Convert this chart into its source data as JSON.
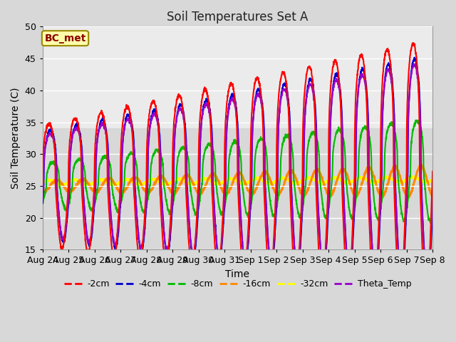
{
  "title": "Soil Temperatures Set A",
  "xlabel": "Time",
  "ylabel": "Soil Temperature (C)",
  "ylim": [
    15,
    50
  ],
  "figure_bg": "#d8d8d8",
  "plot_bg_top": "#e8e8e8",
  "plot_bg_bottom": "#d0d0d0",
  "annotation_text": "BC_met",
  "annotation_color": "#8b0000",
  "annotation_bg": "#ffffaa",
  "annotation_border": "#998800",
  "series_colors": {
    "-2cm": "#ff0000",
    "-4cm": "#0000cc",
    "-8cm": "#00bb00",
    "-16cm": "#ff8800",
    "-32cm": "#ffff00",
    "Theta_Temp": "#9900cc"
  },
  "tick_labels": [
    "Aug 24",
    "Aug 25",
    "Aug 26",
    "Aug 27",
    "Aug 28",
    "Aug 29",
    "Aug 30",
    "Aug 31",
    "Sep 1",
    "Sep 2",
    "Sep 3",
    "Sep 4",
    "Sep 5",
    "Sep 6",
    "Sep 7",
    "Sep 8"
  ],
  "yticks": [
    15,
    20,
    25,
    30,
    35,
    40,
    45,
    50
  ],
  "num_days": 15,
  "points_per_day": 144,
  "trough_base": 19.5,
  "mean_base": 25.0,
  "mean_trend_total": 2.5,
  "peak_amplitudes_start": [
    9.5,
    8.5,
    3.5,
    1.2,
    0.5,
    8.0
  ],
  "peak_amplitudes_end": [
    20.5,
    18.0,
    8.0,
    3.5,
    0.8,
    17.0
  ],
  "phase_offsets": [
    0.0,
    0.05,
    0.15,
    0.3,
    0.5,
    0.04
  ],
  "series_order": [
    "-2cm",
    "-4cm",
    "-8cm",
    "-16cm",
    "-32cm",
    "Theta_Temp"
  ]
}
